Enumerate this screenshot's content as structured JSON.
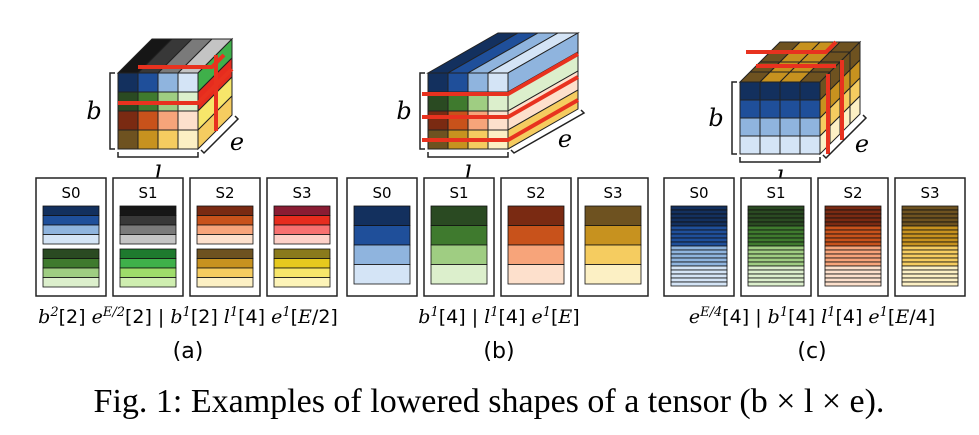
{
  "axis_labels": {
    "b": "b",
    "l": "l",
    "e": "e"
  },
  "panels": [
    {
      "id": "a",
      "sub_label": "(a)",
      "stages": [
        "S0",
        "S1",
        "S2",
        "S3"
      ],
      "formula": "b²[2] e^{E/2}[2] | b¹[2] l¹[4] e¹[E/2]"
    },
    {
      "id": "b",
      "sub_label": "(b)",
      "stages": [
        "S0",
        "S1",
        "S2",
        "S3"
      ],
      "formula": "b¹[4] | l¹[4] e¹[E]"
    },
    {
      "id": "c",
      "sub_label": "(c)",
      "stages": [
        "S0",
        "S1",
        "S2",
        "S3"
      ],
      "formula": "e^{E/4}[4] | b¹[4] l¹[4] e¹[E/4]"
    }
  ],
  "caption": "Fig. 1: Examples of lowered shapes of a tensor (b × l × e).",
  "colors": {
    "blue": [
      "#13305e",
      "#1f4f9a",
      "#8fb4de",
      "#d4e4f6"
    ],
    "green": [
      "#2a4a22",
      "#3f7a2e",
      "#9fcd82",
      "#dcefcc"
    ],
    "orange": [
      "#7a2a12",
      "#c8521b",
      "#f7a47a",
      "#fde0cc"
    ],
    "gold": [
      "#6e5220",
      "#c7921f",
      "#f5cc60",
      "#fcf0c4"
    ],
    "gray": [
      "#161616",
      "#383838",
      "#7a7a7a",
      "#c4c4c4"
    ],
    "red": [
      "#8a1c33",
      "#e62c1e",
      "#f77170",
      "#fdd1c8"
    ],
    "bright_green": [
      "#1e7a2e",
      "#3fb04a",
      "#9edc6a",
      "#cfeeb0"
    ],
    "yellow": [
      "#8a7a1c",
      "#e6c91e",
      "#f7e66a",
      "#fdf4b8"
    ],
    "highlight_red": "#e8321f"
  }
}
